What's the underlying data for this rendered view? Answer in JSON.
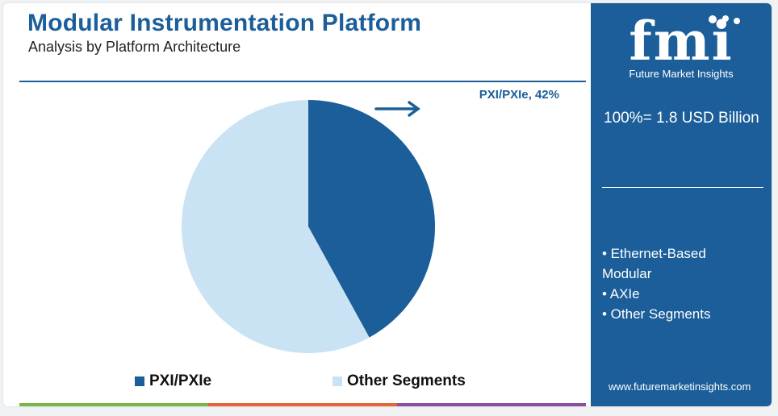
{
  "header": {
    "title": "Modular Instrumentation Platform",
    "subtitle": "Analysis by Platform Architecture"
  },
  "chart_data": {
    "type": "pie",
    "title": "Modular Instrumentation Platform",
    "subtitle": "Analysis by Platform Architecture",
    "slices": [
      {
        "name": "PXI/PXIe",
        "value": 42,
        "color": "#1b5e99"
      },
      {
        "name": "Other Segments",
        "value": 58,
        "color": "#c9e3f5"
      }
    ],
    "annotation": "PXI/PXIe, 42%",
    "legend_position": "bottom"
  },
  "legend": {
    "items": [
      {
        "label": "PXI/PXIe",
        "color": "#1b5e99"
      },
      {
        "label": "Other Segments",
        "color": "#c9e3f5"
      }
    ]
  },
  "side_panel": {
    "logo_text": "fmi",
    "logo_caption": "Future Market Insights",
    "total": "100%= 1.8 USD Billion",
    "segments": [
      "• Ethernet-Based",
      "Modular",
      "• AXIe",
      "• Other Segments"
    ],
    "website": "www.futuremarketinsights.com"
  },
  "colors": {
    "brand": "#1b5e99",
    "light": "#c9e3f5",
    "bar": [
      "#7ab648",
      "#e3643a",
      "#8a4fa0"
    ]
  }
}
